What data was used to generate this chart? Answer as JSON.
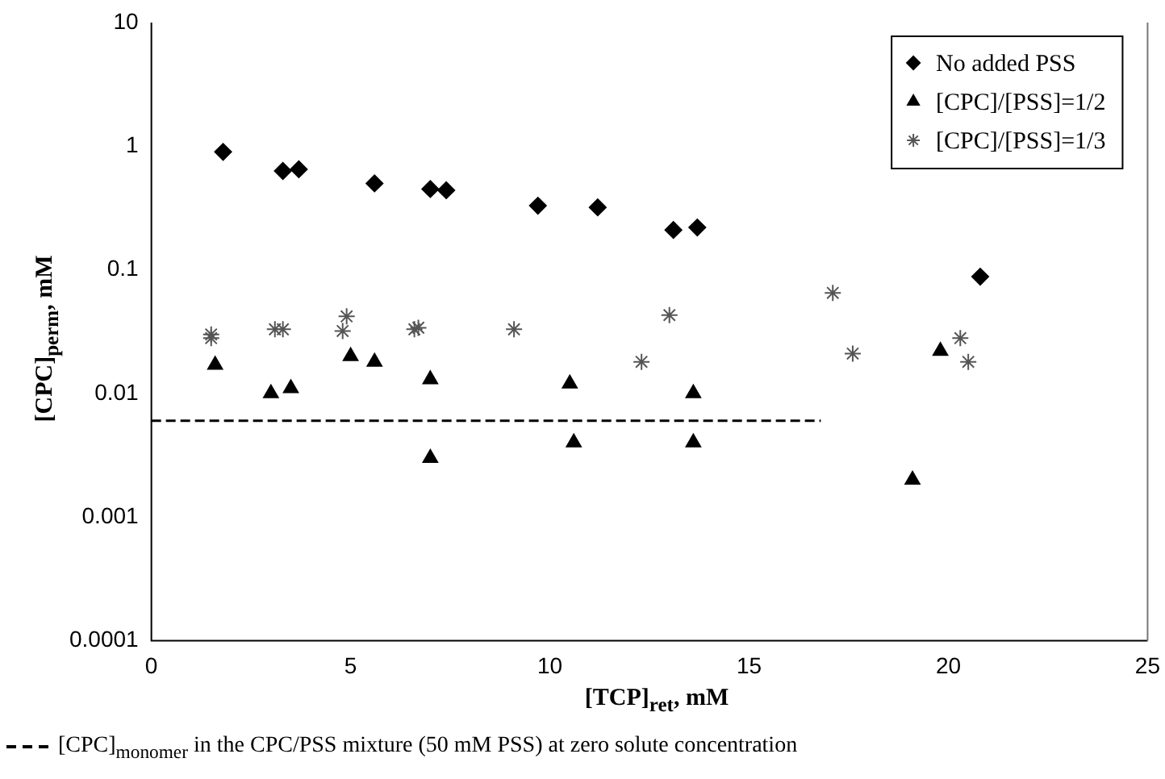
{
  "chart_data": {
    "type": "scatter",
    "xlabel": "[TCP]$_{ret}$, mM",
    "ylabel": "[CPC]$_{perm}$, mM",
    "log": "y",
    "xlim": [
      0,
      25
    ],
    "xticks": [
      0,
      5,
      10,
      15,
      20,
      25
    ],
    "ylim": [
      0.0001,
      10
    ],
    "yticks": [
      0.0001,
      0.001,
      0.01,
      0.1,
      1,
      10
    ],
    "grid": false,
    "annotations": [
      "[CPC]$_{monomer}$ in the CPC/PSS mixture (50 mM PSS) at zero solute concentration"
    ],
    "legend": "top right",
    "series": [
      {
        "name": "No added PSS",
        "color": "#000000",
        "marker": "diamond",
        "x": [
          1.8,
          3.3,
          3.7,
          5.6,
          7.0,
          7.4,
          9.7,
          11.2,
          13.1,
          13.7,
          20.8
        ],
        "values": [
          0.9,
          0.63,
          0.65,
          0.5,
          0.45,
          0.44,
          0.33,
          0.32,
          0.21,
          0.22,
          0.088
        ]
      },
      {
        "name": "[CPC]/[PSS]=1/2",
        "color": "#000000",
        "marker": "triangle",
        "x": [
          1.6,
          3.0,
          3.5,
          5.0,
          5.6,
          7.0,
          7.0,
          10.5,
          10.6,
          13.6,
          13.6,
          19.1,
          19.8
        ],
        "values": [
          0.017,
          0.01,
          0.011,
          0.02,
          0.018,
          0.013,
          0.003,
          0.012,
          0.004,
          0.004,
          0.01,
          0.002,
          0.022
        ]
      },
      {
        "name": "[CPC]/[PSS]=1/3",
        "color": "#555555",
        "marker": "cross",
        "x": [
          1.5,
          1.5,
          3.1,
          3.3,
          4.8,
          4.9,
          6.6,
          6.7,
          9.1,
          12.3,
          13.0,
          17.1,
          17.6,
          20.3,
          20.5
        ],
        "values": [
          0.03,
          0.028,
          0.033,
          0.033,
          0.032,
          0.042,
          0.033,
          0.034,
          0.033,
          0.018,
          0.043,
          0.065,
          0.021,
          0.028,
          0.018
        ]
      },
      {
        "type": "line",
        "color": "#000000",
        "marker": "none",
        "line_style": "dashed",
        "x": [
          0,
          16.8
        ],
        "values": [
          0.006,
          0.006
        ]
      }
    ]
  }
}
